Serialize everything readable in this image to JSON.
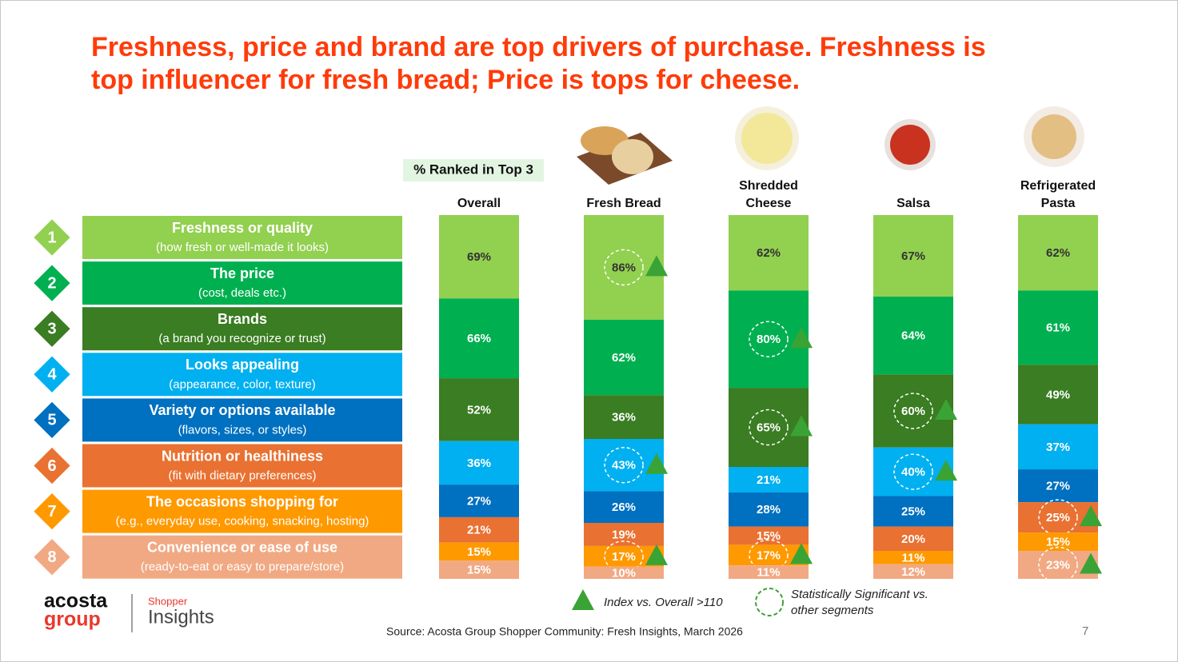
{
  "chart_data": {
    "type": "stacked-column",
    "title": [
      "Freshness, price and brand are top drivers of purchase.  Freshness is",
      "top influencer for fresh bread; Price is tops for cheese."
    ],
    "subtitle": "% Ranked in Top 3",
    "categories": [
      "Overall",
      "Fresh Bread",
      "Shredded Cheese",
      "Salsa",
      "Refrigerated Pasta"
    ],
    "series": [
      {
        "rank": "1",
        "name": "Freshness or quality",
        "description": "(how fresh or well-made it looks)",
        "color": "#92d050",
        "label_color": "#333333",
        "values": [
          69,
          86,
          62,
          67,
          62
        ],
        "value_labels": [
          "69%",
          "86%",
          "62%",
          "67%",
          "62%"
        ],
        "flagged": [
          false,
          true,
          false,
          false,
          false
        ]
      },
      {
        "rank": "2",
        "name": "The price",
        "description": "(cost, deals etc.)",
        "color": "#00b050",
        "label_color": "#ffffff",
        "values": [
          66,
          62,
          80,
          64,
          61
        ],
        "value_labels": [
          "66%",
          "62%",
          "80%",
          "64%",
          "61%"
        ],
        "flagged": [
          false,
          false,
          true,
          false,
          false
        ]
      },
      {
        "rank": "3",
        "name": "Brands",
        "description": "(a brand you recognize or trust)",
        "color": "#3a7d22",
        "label_color": "#ffffff",
        "values": [
          52,
          36,
          65,
          60,
          49
        ],
        "value_labels": [
          "52%",
          "36%",
          "65%",
          "60%",
          "49%"
        ],
        "flagged": [
          false,
          false,
          true,
          true,
          false
        ]
      },
      {
        "rank": "4",
        "name": "Looks appealing",
        "description": "(appearance, color, texture)",
        "color": "#00b0f0",
        "label_color": "#ffffff",
        "values": [
          36,
          43,
          21,
          40,
          37
        ],
        "value_labels": [
          "36%",
          "43%",
          "21%",
          "40%",
          "37%"
        ],
        "flagged": [
          false,
          true,
          false,
          true,
          false
        ]
      },
      {
        "rank": "5",
        "name": "Variety or options available",
        "description": "(flavors, sizes, or styles)",
        "color": "#0070c0",
        "label_color": "#ffffff",
        "values": [
          27,
          26,
          28,
          25,
          27
        ],
        "value_labels": [
          "27%",
          "26%",
          "28%",
          "25%",
          "27%"
        ],
        "flagged": [
          false,
          false,
          false,
          false,
          false
        ]
      },
      {
        "rank": "6",
        "name": "Nutrition or healthiness",
        "description": "(fit with dietary preferences)",
        "color": "#e97132",
        "label_color": "#ffffff",
        "values": [
          21,
          19,
          15,
          20,
          25
        ],
        "value_labels": [
          "21%",
          "19%",
          "15%",
          "20%",
          "25%"
        ],
        "flagged": [
          false,
          false,
          false,
          false,
          true
        ]
      },
      {
        "rank": "7",
        "name": "The occasions shopping for",
        "description": "(e.g., everyday use, cooking, snacking, hosting)",
        "color": "#ff9900",
        "label_color": "#ffffff",
        "values": [
          15,
          17,
          17,
          11,
          15
        ],
        "value_labels": [
          "15%",
          "17%",
          "17%",
          "11%",
          "15%"
        ],
        "flagged": [
          false,
          true,
          true,
          false,
          false
        ]
      },
      {
        "rank": "8",
        "name": "Convenience or ease of use",
        "description": "(ready-to-eat or easy to prepare/store)",
        "color": "#f1a983",
        "label_color": "#ffffff",
        "values": [
          15,
          10,
          11,
          12,
          23
        ],
        "value_labels": [
          "15%",
          "10%",
          "11%",
          "12%",
          "23%"
        ],
        "flagged": [
          false,
          false,
          false,
          false,
          true
        ]
      }
    ],
    "legend": {
      "index_marker": "Index vs. Overall >110",
      "significance_marker": "Statistically Significant vs. other segments",
      "marker_color": "#3aa335"
    },
    "source": "Source: Acosta Group Shopper Community: Fresh Insights, March 2026"
  },
  "footer": {
    "logo_top": "acosta",
    "logo_bottom": "group",
    "brand_small": "Shopper",
    "brand_large": "Insights",
    "page_number": "7"
  }
}
